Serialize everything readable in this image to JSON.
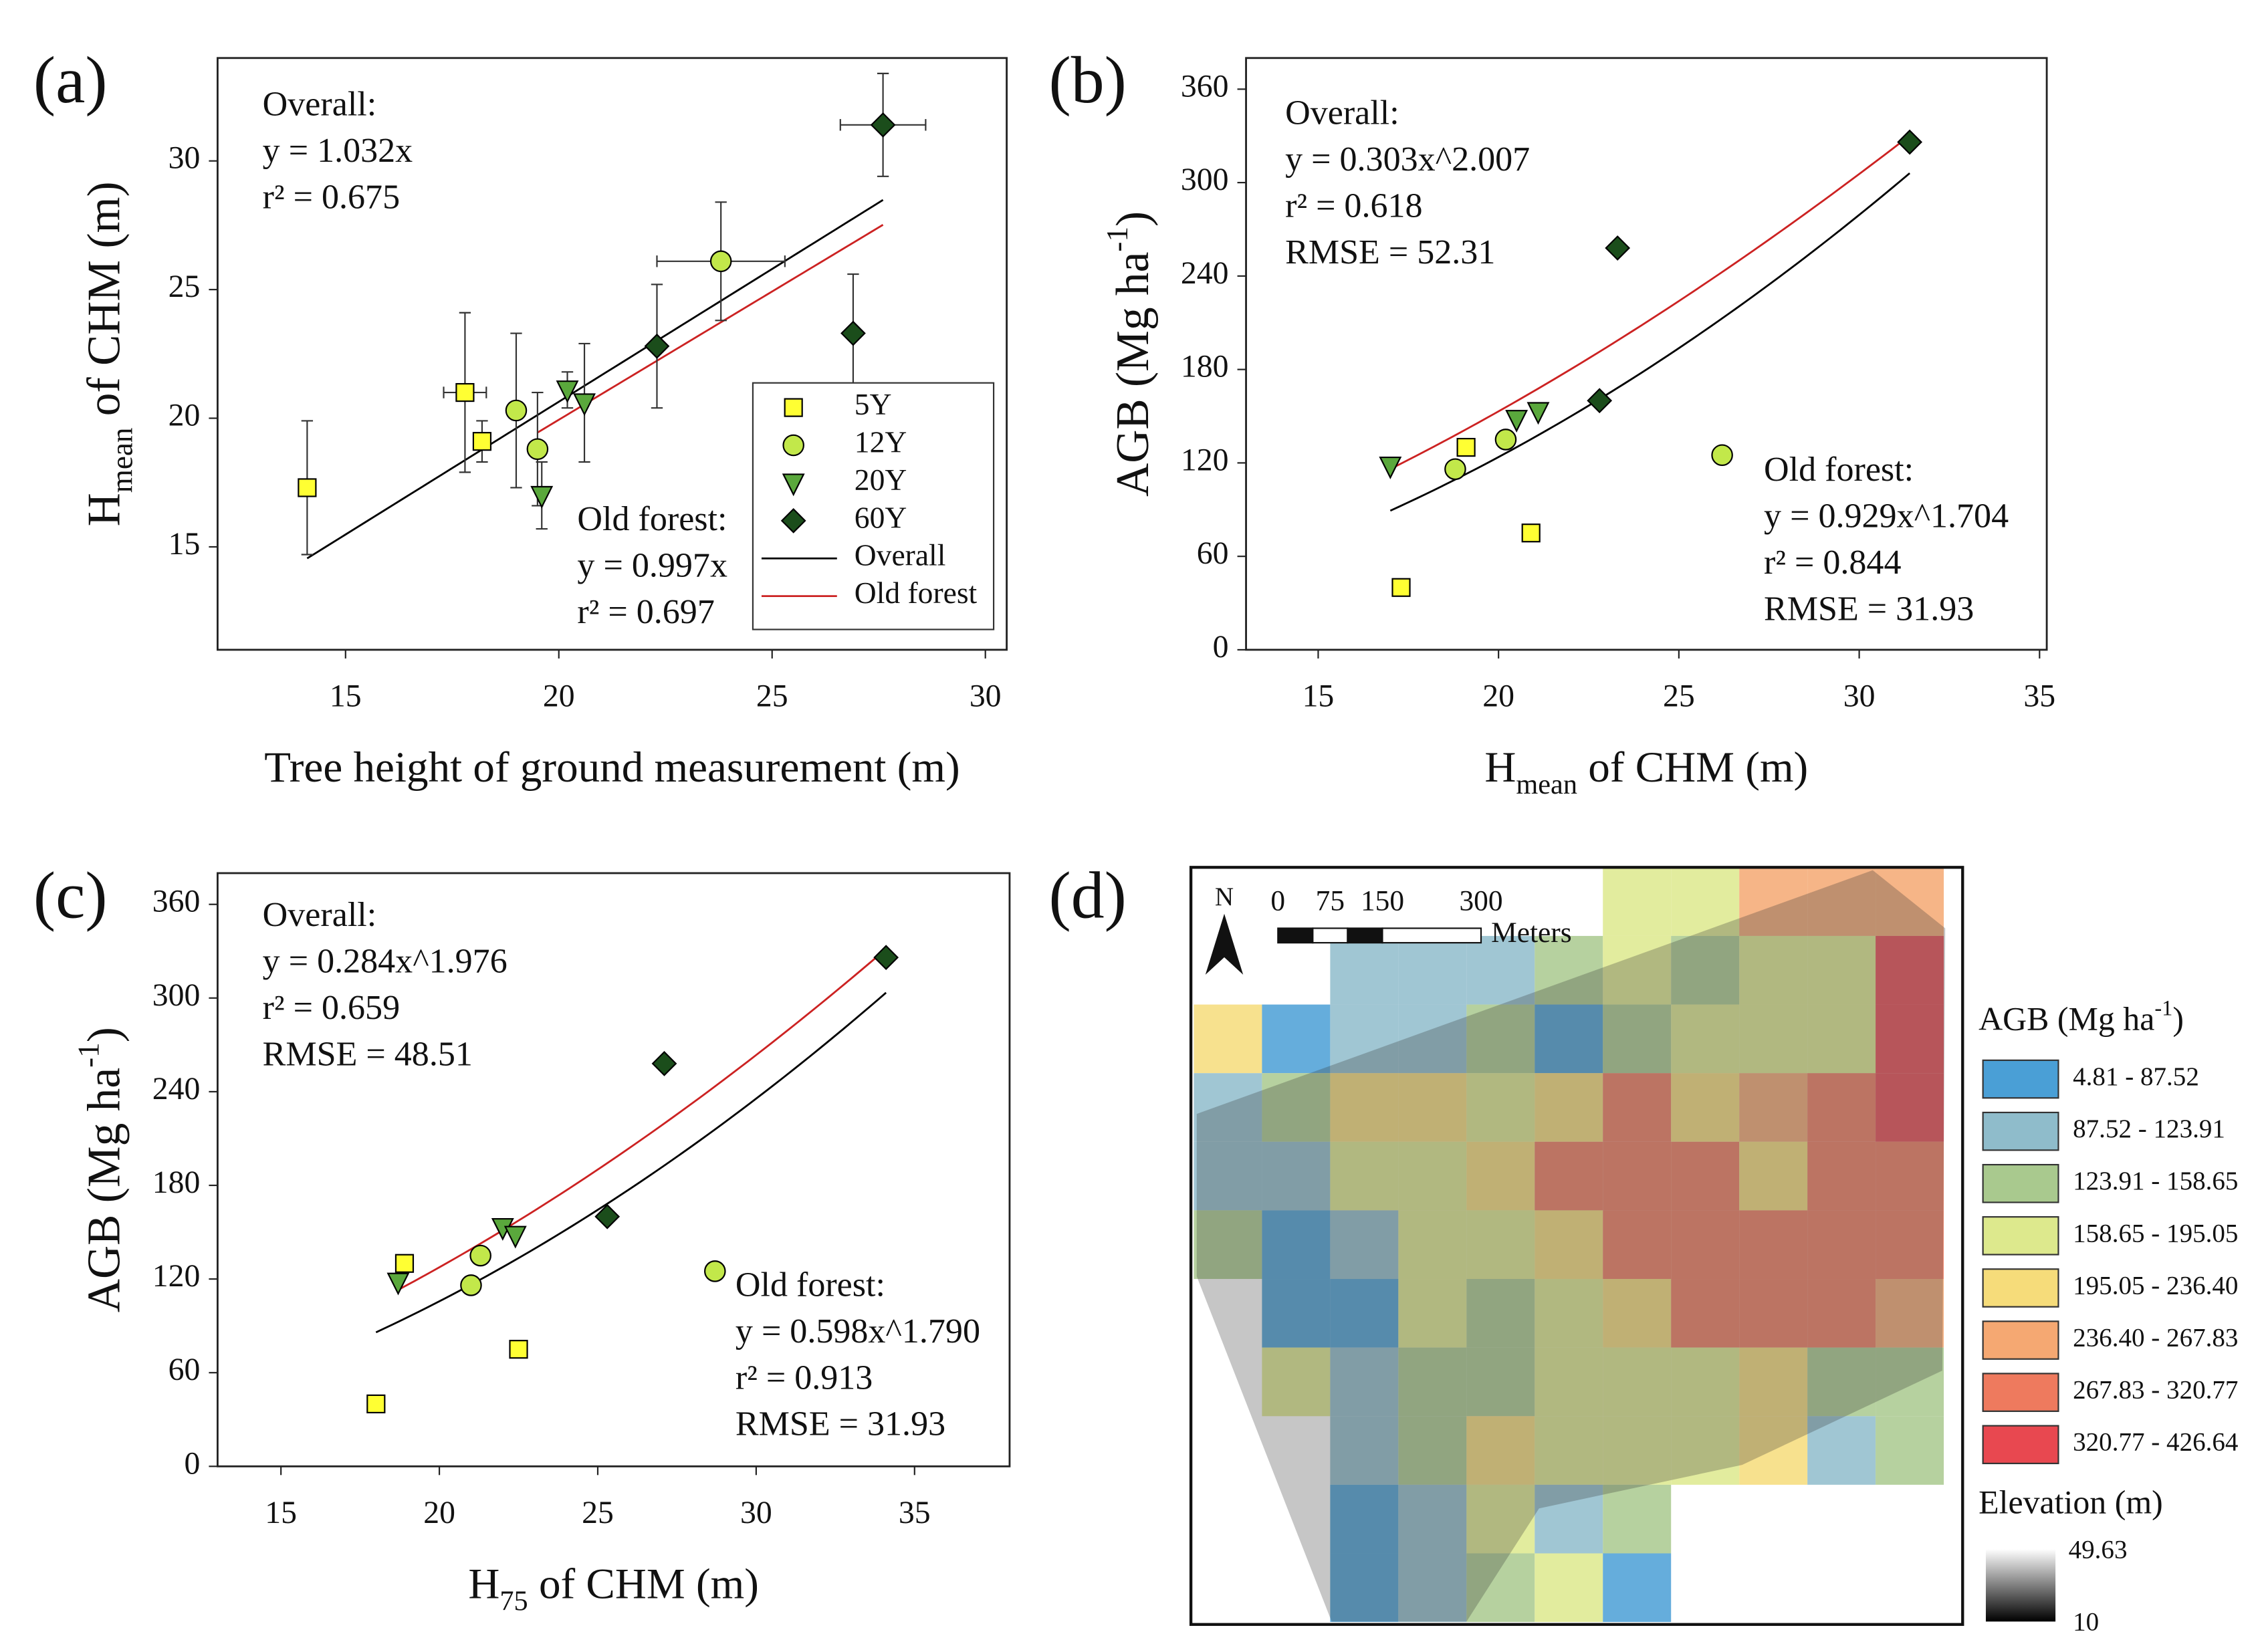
{
  "chart_data": [
    {
      "type": "scatter",
      "label": "(a)",
      "xlabel": [
        {
          "text": "Tree height of ground measurement (m)"
        }
      ],
      "ylabel": [
        {
          "text": "H"
        },
        {
          "sub": "mean"
        },
        {
          "text": " of CHM (m)"
        }
      ],
      "xlim": [
        12,
        30.5
      ],
      "ylim": [
        11,
        34
      ],
      "xticks": [
        15,
        20,
        25,
        30
      ],
      "yticks": [
        15,
        20,
        25,
        30
      ],
      "series": [
        {
          "name": "5Y",
          "color": "#ffff33",
          "marker": "square",
          "x": [
            14.1,
            17.8,
            18.2
          ],
          "values": [
            17.3,
            21.0,
            19.1
          ],
          "yerr": [
            2.6,
            3.1,
            0.8
          ],
          "xerr": [
            null,
            0.5,
            null
          ]
        },
        {
          "name": "12Y",
          "color": "#c2e84a",
          "marker": "circle",
          "x": [
            19.0,
            19.5,
            23.8
          ],
          "values": [
            20.3,
            18.8,
            26.1
          ],
          "yerr": [
            3.0,
            2.2,
            2.3
          ],
          "xerr": [
            null,
            null,
            1.5
          ]
        },
        {
          "name": "20Y",
          "color": "#5aa83c",
          "marker": "triangle",
          "x": [
            19.6,
            20.2,
            20.6
          ],
          "values": [
            17.0,
            21.1,
            20.6
          ],
          "yerr": [
            1.3,
            0.7,
            2.3
          ],
          "xerr": [
            null,
            null,
            null
          ]
        },
        {
          "name": "60Y",
          "color": "#1b4d1b",
          "marker": "diamond",
          "x": [
            22.3,
            26.9,
            27.6
          ],
          "values": [
            22.8,
            23.3,
            31.4
          ],
          "yerr": [
            2.4,
            2.3,
            2.0
          ],
          "xerr": [
            null,
            null,
            1.0
          ]
        }
      ],
      "fits": [
        {
          "name": "Overall",
          "color": "#000000",
          "a": 1.032,
          "b": 1,
          "x": [
            14.1,
            27.6
          ]
        },
        {
          "name": "Old forest",
          "color": "#cc2222",
          "a": 0.997,
          "b": 1,
          "x": [
            19.5,
            27.6
          ]
        }
      ],
      "annotations": [
        [
          "Overall:",
          "y = 1.032x",
          "r² = 0.675"
        ],
        [
          "Old forest:",
          "y = 0.997x",
          "r² = 0.697"
        ]
      ],
      "legend": "lower right"
    },
    {
      "type": "scatter",
      "label": "(b)",
      "xlabel": [
        {
          "text": "H"
        },
        {
          "sub": "mean"
        },
        {
          "text": " of CHM (m)"
        }
      ],
      "ylabel": [
        {
          "text": "AGB (Mg ha"
        },
        {
          "sup": "-1"
        },
        {
          "text": ")"
        }
      ],
      "xlim": [
        13,
        35.2
      ],
      "ylim": [
        0,
        380
      ],
      "xticks": [
        15,
        20,
        25,
        30,
        35
      ],
      "yticks": [
        0,
        60,
        120,
        180,
        240,
        300,
        360
      ],
      "series": [
        {
          "color": "#ffff33",
          "marker": "square",
          "x": [
            17.3,
            19.1,
            20.9
          ],
          "values": [
            40,
            130,
            75
          ]
        },
        {
          "color": "#c2e84a",
          "marker": "circle",
          "x": [
            18.8,
            20.2,
            26.2
          ],
          "values": [
            116,
            135,
            125
          ]
        },
        {
          "color": "#5aa83c",
          "marker": "triangle",
          "x": [
            17.0,
            20.5,
            21.1
          ],
          "values": [
            118,
            148,
            153
          ]
        },
        {
          "color": "#1b4d1b",
          "marker": "diamond",
          "x": [
            22.8,
            23.3,
            31.4
          ],
          "values": [
            160,
            258,
            326
          ]
        }
      ],
      "fits": [
        {
          "color": "#000000",
          "a": 0.303,
          "b": 2.007,
          "x": [
            17.0,
            31.4
          ]
        },
        {
          "color": "#cc2222",
          "a": 0.929,
          "b": 1.704,
          "x": [
            17.0,
            31.4
          ]
        }
      ],
      "annotations": [
        [
          "Overall:",
          "y = 0.303x^2.007",
          "r² = 0.618",
          "RMSE = 52.31"
        ],
        [
          "Old forest:",
          "y = 0.929x^1.704",
          "r² = 0.844",
          "RMSE = 31.93"
        ]
      ]
    },
    {
      "type": "scatter",
      "label": "(c)",
      "xlabel": [
        {
          "text": "H"
        },
        {
          "sub": "75"
        },
        {
          "text": " of CHM (m)"
        }
      ],
      "ylabel": [
        {
          "text": "AGB (Mg ha"
        },
        {
          "sup": "-1"
        },
        {
          "text": ")"
        }
      ],
      "xlim": [
        13,
        38
      ],
      "ylim": [
        0,
        380
      ],
      "xticks": [
        15,
        20,
        25,
        30,
        35
      ],
      "yticks": [
        0,
        60,
        120,
        180,
        240,
        300,
        360
      ],
      "series": [
        {
          "color": "#ffff33",
          "marker": "square",
          "x": [
            18.0,
            18.9,
            22.5
          ],
          "values": [
            40,
            130,
            75
          ]
        },
        {
          "color": "#c2e84a",
          "marker": "circle",
          "x": [
            21.0,
            21.3,
            28.7
          ],
          "values": [
            116,
            135,
            125
          ]
        },
        {
          "color": "#5aa83c",
          "marker": "triangle",
          "x": [
            18.7,
            22.0,
            22.4
          ],
          "values": [
            118,
            153,
            148
          ]
        },
        {
          "color": "#1b4d1b",
          "marker": "diamond",
          "x": [
            25.3,
            27.1,
            34.1
          ],
          "values": [
            160,
            258,
            326
          ]
        }
      ],
      "fits": [
        {
          "color": "#000000",
          "a": 0.284,
          "b": 1.976,
          "x": [
            18.0,
            34.1
          ]
        },
        {
          "color": "#cc2222",
          "a": 0.598,
          "b": 1.79,
          "x": [
            18.7,
            34.1
          ]
        }
      ],
      "annotations": [
        [
          "Overall:",
          "y = 0.284x^1.976",
          "r² = 0.659",
          "RMSE = 48.51"
        ],
        [
          "Old forest:",
          "y = 0.598x^1.790",
          "r² = 0.913",
          "RMSE = 31.93"
        ]
      ]
    },
    {
      "type": "map",
      "label": "(d)",
      "legend_title": [
        {
          "text": "AGB (Mg ha"
        },
        {
          "sup": "-1"
        },
        {
          "text": ")"
        }
      ],
      "classes": [
        {
          "label": "4.81 - 87.52",
          "color": "#4a9fd6"
        },
        {
          "label": "87.52 - 123.91",
          "color": "#8fbccb"
        },
        {
          "label": "123.91 - 158.65",
          "color": "#a9c98e"
        },
        {
          "label": "158.65 - 195.05",
          "color": "#dde98d"
        },
        {
          "label": "195.05 - 236.40",
          "color": "#f6dc7a"
        },
        {
          "label": "236.40 - 267.83",
          "color": "#f5a872"
        },
        {
          "label": "267.83 - 320.77",
          "color": "#ee7a5e"
        },
        {
          "label": "320.77 - 426.64",
          "color": "#e84850"
        }
      ],
      "elevation_title": "Elevation (m)",
      "elevation_labels": [
        "49.63",
        "10"
      ],
      "scale_labels": [
        "0",
        "75",
        "150",
        "300"
      ],
      "scale_unit": "Meters",
      "north": "N"
    }
  ]
}
